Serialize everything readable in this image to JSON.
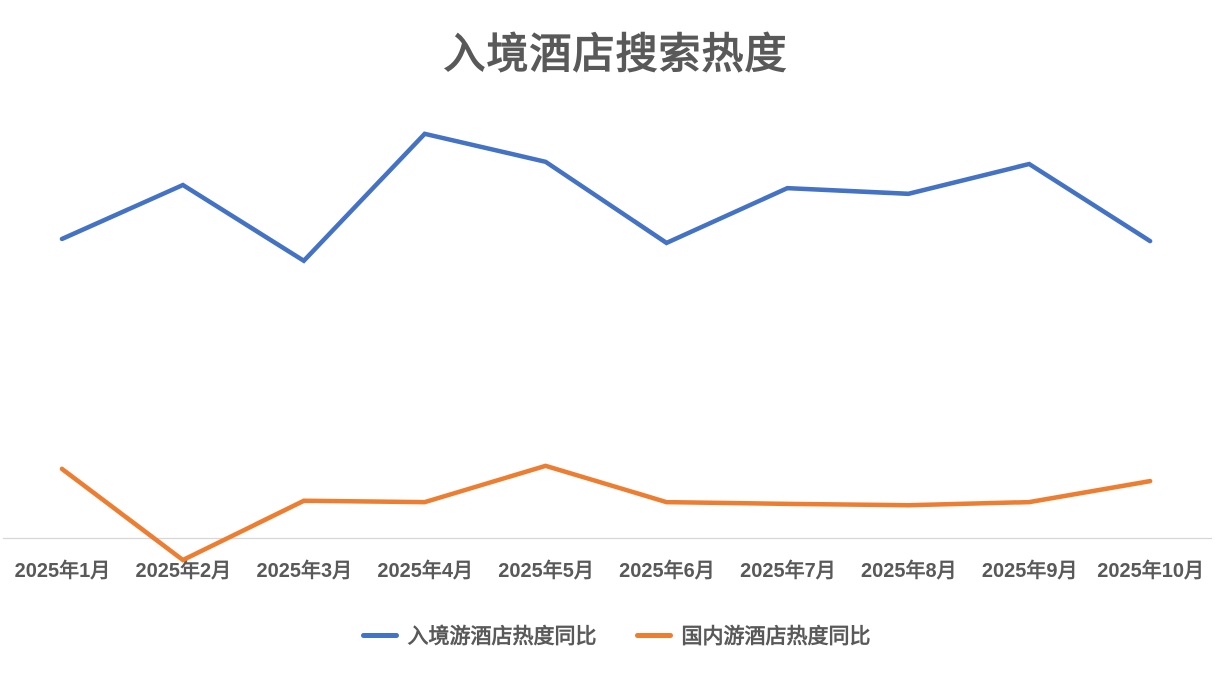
{
  "title": "入境酒店搜索热度",
  "colors": {
    "inbound_line": "#4472C4",
    "domestic_line": "#ED7D31",
    "axis_line": "#D6D6D6",
    "text": "#595959"
  },
  "chart_data": {
    "type": "line",
    "title": "入境酒店搜索热度",
    "categories": [
      "2025年1月",
      "2025年2月",
      "2025年3月",
      "2025年4月",
      "2025年5月",
      "2025年6月",
      "2025年7月",
      "2025年8月",
      "2025年9月",
      "2025年10月"
    ],
    "series": [
      {
        "name": "入境游酒店热度同比",
        "color": "#4472C4",
        "values": [
          68.4,
          80.7,
          63.4,
          92.4,
          86.0,
          67.5,
          80.0,
          78.7,
          85.5,
          67.9
        ]
      },
      {
        "name": "国内游酒店热度同比",
        "color": "#ED7D31",
        "values": [
          15.9,
          -4.9,
          8.6,
          8.3,
          16.6,
          8.3,
          7.9,
          7.6,
          8.3,
          13.1
        ]
      }
    ],
    "xlabel": "",
    "ylabel": "",
    "y_axis_visible": false,
    "y_values_estimated": true,
    "baseline": 0,
    "ylim": [
      -10,
      100
    ],
    "grid": false,
    "legend_position": "bottom"
  }
}
